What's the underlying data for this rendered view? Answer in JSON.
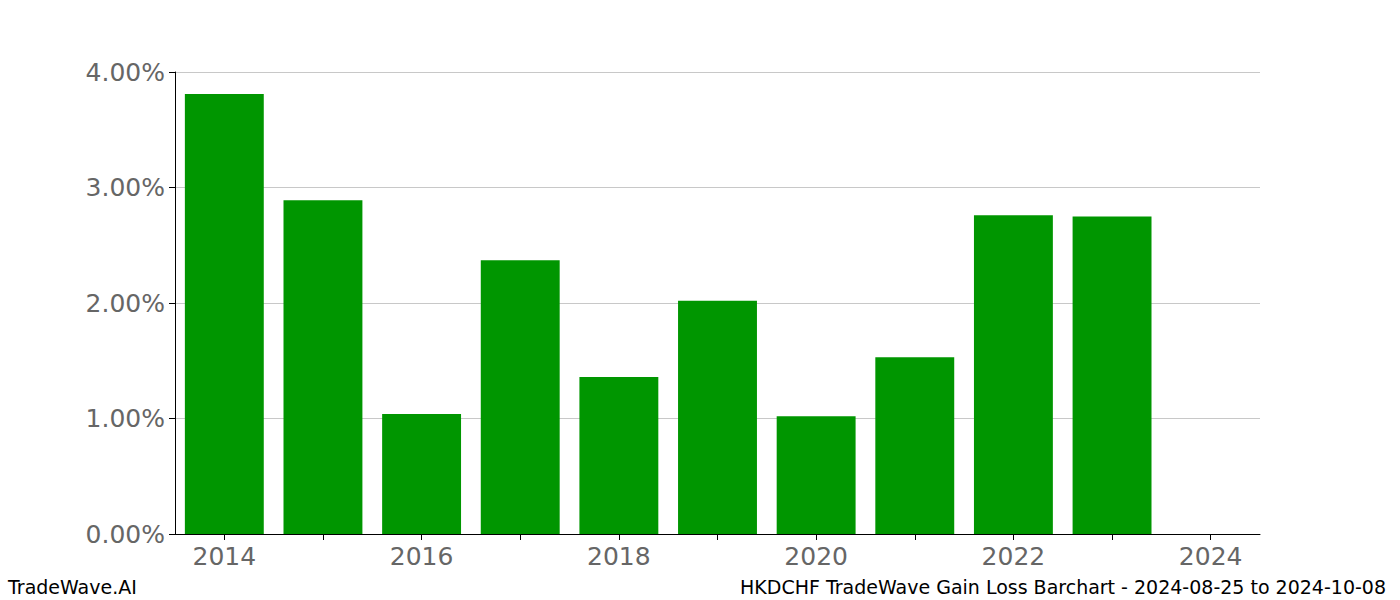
{
  "chart_data": {
    "type": "bar",
    "title": "HKDCHF TradeWave Gain Loss Barchart - 2024-08-25 to 2024-10-08",
    "annotations": [
      "TradeWave.AI"
    ],
    "categories": [
      "2014",
      null,
      "2016",
      null,
      "2018",
      null,
      "2020",
      null,
      "2022",
      null,
      "2024"
    ],
    "values": [
      3.81,
      2.89,
      1.04,
      2.37,
      1.36,
      2.02,
      1.02,
      1.53,
      2.76,
      2.75,
      null
    ],
    "color": "#009600",
    "ylim": [
      0,
      4
    ],
    "yticks": [
      {
        "value": 0,
        "label": "0.00%"
      },
      {
        "value": 1,
        "label": "1.00%"
      },
      {
        "value": 2,
        "label": "2.00%"
      },
      {
        "value": 3,
        "label": "3.00%"
      },
      {
        "value": 4,
        "label": "4.00%"
      }
    ],
    "grid": true
  }
}
